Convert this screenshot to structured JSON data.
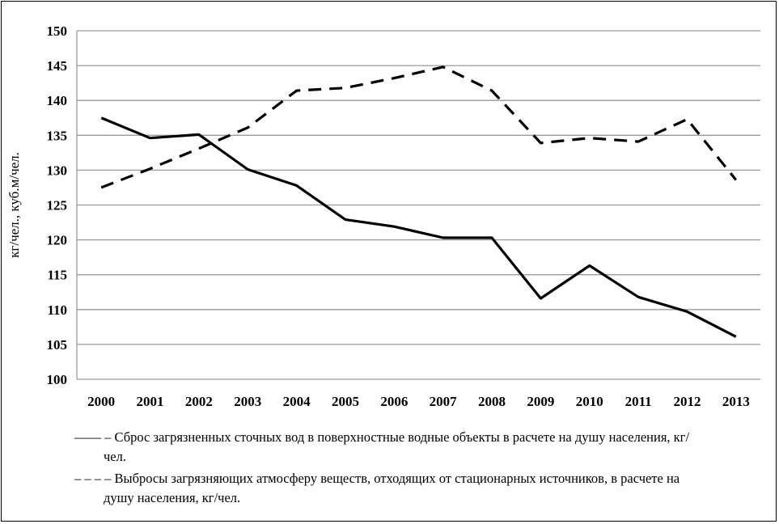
{
  "chart_data": {
    "type": "line",
    "ylabel": "кг/чел., куб.м/чел.",
    "xlabel": "",
    "ylim": [
      100,
      150
    ],
    "yticks": [
      100,
      105,
      110,
      115,
      120,
      125,
      130,
      135,
      140,
      145,
      150
    ],
    "x": [
      "2000",
      "2001",
      "2002",
      "2003",
      "2004",
      "2005",
      "2006",
      "2007",
      "2008",
      "2009",
      "2010",
      "2011",
      "2012",
      "2013"
    ],
    "grid": true,
    "series": [
      {
        "name": "– Сброс загрязненных сточных вод в поверхностные водные объекты в расчете на душу населения, кг/чел.",
        "style": "solid",
        "color": "#000000",
        "values": [
          137.5,
          134.6,
          135.1,
          130.1,
          127.8,
          122.9,
          121.9,
          120.3,
          120.3,
          111.6,
          116.3,
          111.8,
          109.7,
          106.1
        ]
      },
      {
        "name": "– Выбросы загрязняющих атмосферу веществ, отходящих от стационарных источников, в расчете на душу населения, кг/чел.",
        "style": "dashed",
        "color": "#000000",
        "values": [
          127.5,
          130.2,
          133.1,
          136.1,
          141.4,
          141.8,
          143.2,
          144.8,
          141.4,
          133.9,
          134.6,
          134.1,
          137.3,
          128.6
        ]
      }
    ]
  },
  "legend": {
    "solid_mark": "——",
    "solid_line1": "– Сброс загрязненных сточных вод в поверхностные водные объекты в расчете на душу населения, кг/",
    "solid_line2": "чел.",
    "dashed_mark": "– – –",
    "dashed_line1": "– Выбросы загрязняющих атмосферу веществ, отходящих от стационарных источников, в расчете на",
    "dashed_line2": "душу населения, кг/чел."
  }
}
